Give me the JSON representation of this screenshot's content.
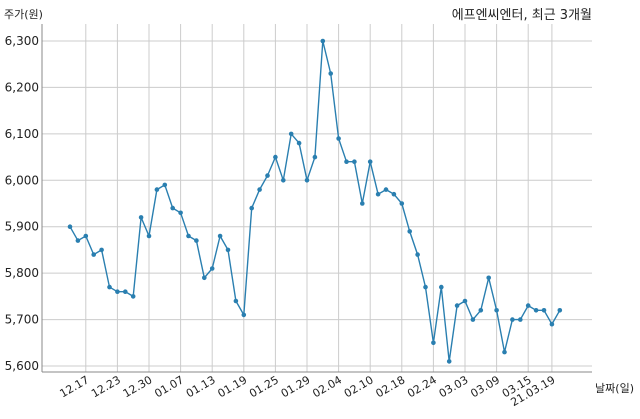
{
  "chart_data": {
    "type": "line",
    "title": "에프엔씨엔터, 최근 3개월",
    "ylabel": "주가(원)",
    "xlabel": "날짜(일)",
    "ylim": [
      5600,
      6300
    ],
    "yticks": [
      5600,
      5700,
      5800,
      5900,
      6000,
      6100,
      6200,
      6300
    ],
    "ytick_labels": [
      "5,600",
      "5,700",
      "5,800",
      "5,900",
      "6,000",
      "6,100",
      "6,200",
      "6,300"
    ],
    "xtick_labels": [
      "12.17",
      "12.23",
      "12.30",
      "01.07",
      "01.13",
      "01.19",
      "01.25",
      "01.29",
      "02.04",
      "02.10",
      "02.18",
      "02.24",
      "03.03",
      "03.09",
      "03.15",
      "21.03.19"
    ],
    "xtick_index": [
      2,
      6,
      10,
      14,
      18,
      22,
      26,
      30,
      34,
      38,
      42,
      46,
      50,
      54,
      58,
      61
    ],
    "grid": true,
    "line_color": "#2a7fb0",
    "values": [
      5900,
      5870,
      5880,
      5840,
      5850,
      5770,
      5760,
      5760,
      5750,
      5920,
      5880,
      5980,
      5990,
      5940,
      5930,
      5880,
      5870,
      5790,
      5810,
      5880,
      5850,
      5740,
      5710,
      5940,
      5980,
      6010,
      6050,
      6000,
      6100,
      6080,
      6000,
      6050,
      6300,
      6230,
      6090,
      6040,
      6040,
      5950,
      6040,
      5970,
      5980,
      5970,
      5950,
      5890,
      5840,
      5770,
      5650,
      5770,
      5610,
      5730,
      5740,
      5700,
      5720,
      5790,
      5720,
      5630,
      5700,
      5700,
      5730,
      5720,
      5720,
      5690,
      5720
    ]
  }
}
